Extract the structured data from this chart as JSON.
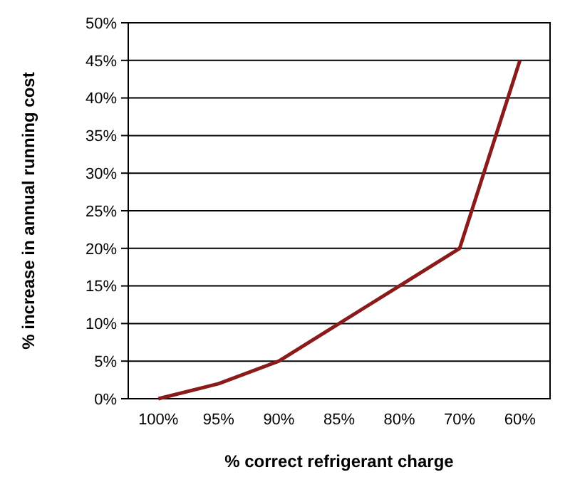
{
  "chart_data": {
    "type": "line",
    "xlabel": "% correct refrigerant charge",
    "ylabel": "% increase in annual running cost",
    "categories": [
      "100%",
      "95%",
      "90%",
      "85%",
      "80%",
      "70%",
      "60%"
    ],
    "series": [
      {
        "color": "#8b1a1a",
        "values": [
          0,
          2,
          5,
          10,
          15,
          20,
          45
        ]
      }
    ],
    "ylim": [
      0,
      50
    ],
    "yticks": [
      {
        "value": 0,
        "label": "0%"
      },
      {
        "value": 5,
        "label": "5%"
      },
      {
        "value": 10,
        "label": "10%"
      },
      {
        "value": 15,
        "label": "15%"
      },
      {
        "value": 20,
        "label": "20%"
      },
      {
        "value": 25,
        "label": "25%"
      },
      {
        "value": 30,
        "label": "30%"
      },
      {
        "value": 35,
        "label": "35%"
      },
      {
        "value": 40,
        "label": "40%"
      },
      {
        "value": 45,
        "label": "45%"
      },
      {
        "value": 50,
        "label": "50%"
      }
    ],
    "grid": "y",
    "marker": "none",
    "line_style": "solid"
  }
}
